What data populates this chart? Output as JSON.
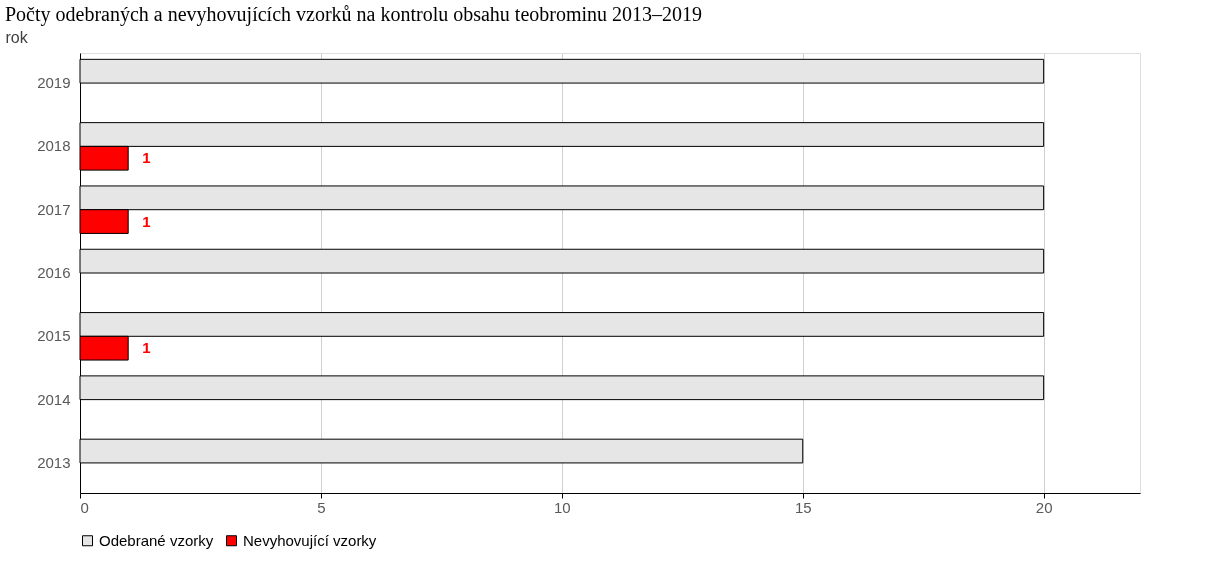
{
  "chart_data": {
    "type": "bar",
    "orientation": "horizontal",
    "title": "Počty odebraných a nevyhovujících vzorků na kontrolu obsahu teobrominu 2013–2019",
    "ylabel": "rok",
    "categories": [
      "2019",
      "2018",
      "2017",
      "2016",
      "2015",
      "2014",
      "2013"
    ],
    "series": [
      {
        "name": "Odebrané vzorky",
        "color": "#e6e6e6",
        "values": [
          20,
          20,
          20,
          20,
          20,
          20,
          15
        ]
      },
      {
        "name": "Nevyhovující vzorky",
        "color": "#ff0000",
        "values": [
          null,
          1,
          1,
          null,
          1,
          null,
          null
        ],
        "value_labels": [
          null,
          "1",
          "1",
          null,
          "1",
          null,
          null
        ]
      }
    ],
    "xlim": [
      0,
      22
    ],
    "xticks": [
      0,
      5,
      10,
      15,
      20
    ],
    "grid": "x",
    "legend": "bottom"
  }
}
